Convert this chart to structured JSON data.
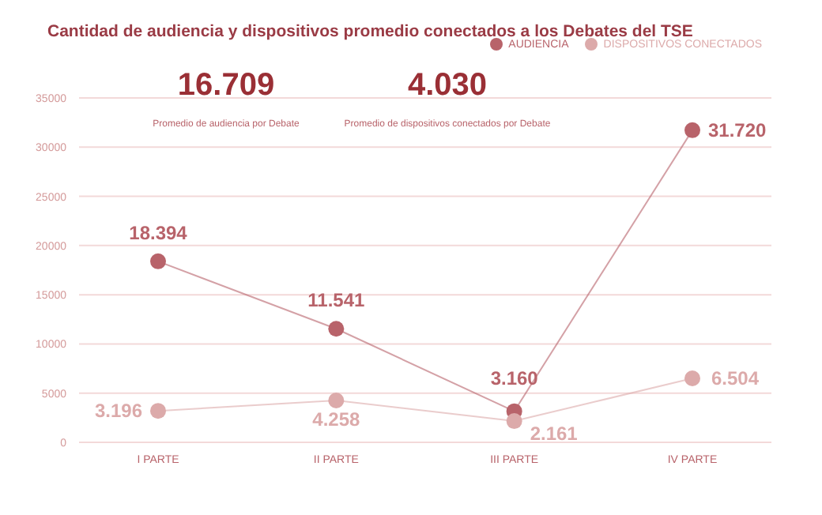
{
  "chart_data": {
    "type": "line",
    "title": "Cantidad de audiencia y dispositivos promedio conectados a los Debates del TSE",
    "categories": [
      "I PARTE",
      "II PARTE",
      "III PARTE",
      "IV PARTE"
    ],
    "series": [
      {
        "name": "AUDIENCIA",
        "color": "#b8636a",
        "values": [
          18394,
          11541,
          3160,
          31720
        ],
        "value_labels": [
          "18.394",
          "11.541",
          "3.160",
          "31.720"
        ]
      },
      {
        "name": "DISPOSITIVOS CONECTADOS",
        "color": "#dcaaaa",
        "values": [
          3196,
          4258,
          2161,
          6504
        ],
        "value_labels": [
          "3.196",
          "4.258",
          "2.161",
          "6.504"
        ]
      }
    ],
    "ylim": [
      0,
      35000
    ],
    "yticks": [
      0,
      5000,
      10000,
      15000,
      20000,
      25000,
      30000,
      35000
    ],
    "grid": "y",
    "legend": "top right",
    "marker": "circle",
    "line_style": "solid",
    "annotations": [
      "16.709",
      "Promedio de audiencia por Debate",
      "4.030",
      "Promedio de dispositivos conectados por Debate"
    ]
  }
}
